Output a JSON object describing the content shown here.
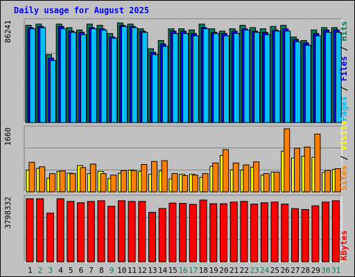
{
  "title": "Daily usage for August 2025",
  "colors": {
    "hits": "#00805c",
    "files": "#0000ff",
    "pages": "#00c0ff",
    "visits": "#ffff00",
    "sites": "#ff8000",
    "kbytes": "#ff0000",
    "weekend_day_label": "#00805c",
    "weekday_label": "#000000",
    "title": "#0000ff",
    "frame_bg": "#c0c0c0",
    "plot_bg": "#c0c0c0"
  },
  "chart_data": [
    {
      "type": "bar",
      "panel": "top",
      "ylabel": "86241",
      "ymax": 86241,
      "categories": [
        "1",
        "2",
        "3",
        "4",
        "5",
        "6",
        "7",
        "8",
        "9",
        "10",
        "11",
        "12",
        "13",
        "14",
        "15",
        "16",
        "17",
        "18",
        "19",
        "20",
        "21",
        "22",
        "23",
        "24",
        "25",
        "26",
        "27",
        "28",
        "29",
        "30",
        "31"
      ],
      "series": [
        {
          "name": "Hits",
          "values": [
            83000,
            84000,
            58000,
            84000,
            81000,
            79000,
            84000,
            83000,
            76000,
            85000,
            84000,
            80000,
            63000,
            70000,
            80000,
            80000,
            79000,
            84000,
            80000,
            78000,
            80000,
            83000,
            81000,
            80000,
            82000,
            83000,
            73000,
            70000,
            79000,
            81000,
            81000
          ]
        },
        {
          "name": "Files",
          "values": [
            81000,
            82000,
            55000,
            82000,
            78000,
            77000,
            81000,
            80000,
            73000,
            83000,
            82000,
            78000,
            60000,
            67000,
            78000,
            78000,
            76000,
            81000,
            77000,
            76000,
            78000,
            80000,
            78000,
            77000,
            79000,
            80000,
            71000,
            68000,
            76000,
            79000,
            79000
          ]
        },
        {
          "name": "Pages",
          "values": [
            80000,
            81000,
            53000,
            80000,
            77000,
            75000,
            80000,
            79000,
            72000,
            82000,
            81000,
            77000,
            58000,
            65000,
            76000,
            76000,
            74000,
            80000,
            76000,
            74000,
            76000,
            79000,
            77000,
            75000,
            78000,
            78000,
            69000,
            66000,
            74000,
            77000,
            77000
          ]
        }
      ]
    },
    {
      "type": "bar",
      "panel": "middle",
      "ylabel": "1660",
      "ymax": 1660,
      "categories": [
        "1",
        "2",
        "3",
        "4",
        "5",
        "6",
        "7",
        "8",
        "9",
        "10",
        "11",
        "12",
        "13",
        "14",
        "15",
        "16",
        "17",
        "18",
        "19",
        "20",
        "21",
        "22",
        "23",
        "24",
        "25",
        "26",
        "27",
        "28",
        "29",
        "30",
        "31"
      ],
      "series": [
        {
          "name": "Visits",
          "values": [
            570,
            620,
            360,
            540,
            490,
            690,
            480,
            540,
            350,
            490,
            570,
            540,
            460,
            550,
            340,
            460,
            460,
            380,
            670,
            960,
            580,
            570,
            650,
            440,
            520,
            1070,
            890,
            940,
            910,
            510,
            590
          ]
        },
        {
          "name": "Sites",
          "values": [
            780,
            660,
            480,
            550,
            480,
            640,
            730,
            480,
            440,
            560,
            560,
            720,
            800,
            820,
            480,
            430,
            440,
            480,
            760,
            1110,
            760,
            710,
            790,
            480,
            520,
            1660,
            1150,
            1180,
            1520,
            560,
            610
          ]
        }
      ]
    },
    {
      "type": "bar",
      "panel": "bottom",
      "ylabel": "3798332",
      "ymax": 3798332,
      "categories": [
        "1",
        "2",
        "3",
        "4",
        "5",
        "6",
        "7",
        "8",
        "9",
        "10",
        "11",
        "12",
        "13",
        "14",
        "15",
        "16",
        "17",
        "18",
        "19",
        "20",
        "21",
        "22",
        "23",
        "24",
        "25",
        "26",
        "27",
        "28",
        "29",
        "30",
        "31"
      ],
      "series": [
        {
          "name": "KBytes",
          "values": [
            3760000,
            3760000,
            2900000,
            3760000,
            3600000,
            3520000,
            3600000,
            3640000,
            3310000,
            3640000,
            3600000,
            3600000,
            2950000,
            3180000,
            3500000,
            3480000,
            3420000,
            3680000,
            3460000,
            3460000,
            3560000,
            3600000,
            3440000,
            3520000,
            3560000,
            3440000,
            3170000,
            3120000,
            3340000,
            3560000,
            3640000
          ]
        }
      ]
    }
  ],
  "side_labels": {
    "top": {
      "pages": "Pages",
      "sep1": " / ",
      "files": "Files",
      "sep2": " / ",
      "hits": "Hits"
    },
    "middle": {
      "sites": "Sites",
      "sep": " / ",
      "visits": "Visits"
    },
    "bottom": {
      "kbytes": "KBytes"
    }
  },
  "weekend_days": [
    "2",
    "3",
    "9",
    "16",
    "17",
    "23",
    "24",
    "30",
    "31"
  ]
}
